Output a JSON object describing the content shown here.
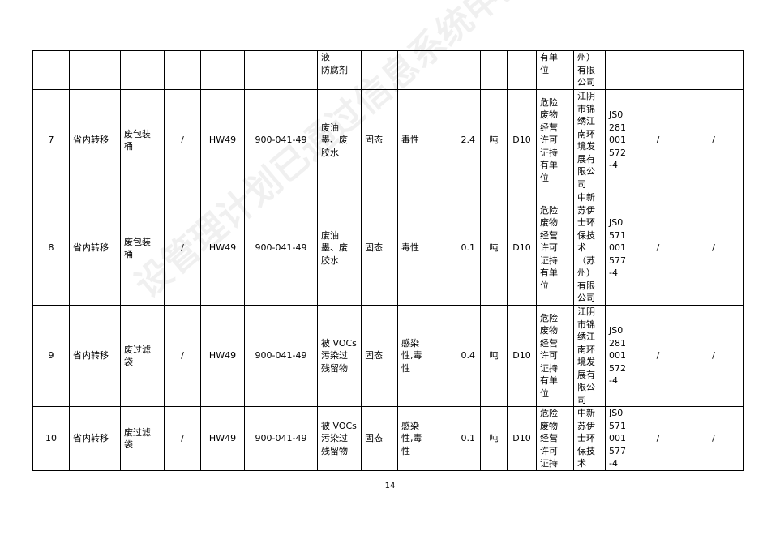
{
  "watermark": "设管理计划已通过信息系统申报备案",
  "page_number": "14",
  "rows": [
    {
      "cells": [
        "",
        "",
        "",
        "",
        "",
        "",
        "液\n防腐剂",
        "",
        "",
        "",
        "",
        "",
        "有单\n位",
        "州）\n有限\n公司",
        "",
        "",
        ""
      ]
    },
    {
      "cells": [
        "7",
        "省内转移",
        "废包装\n桶",
        "/",
        "HW49",
        "900-041-49",
        "废油\n墨、废\n胶水",
        "固态",
        "毒性",
        "2.4",
        "吨",
        "D10",
        "危险\n废物\n经营\n许可\n证持\n有单\n位",
        "江阴\n市锦\n绣江\n南环\n境发\n展有\n限公\n司",
        "JS0\n281\n001\n572\n-4",
        "/",
        "/"
      ]
    },
    {
      "cells": [
        "8",
        "省内转移",
        "废包装\n桶",
        "/",
        "HW49",
        "900-041-49",
        "废油\n墨、废\n胶水",
        "固态",
        "毒性",
        "0.1",
        "吨",
        "D10",
        "危险\n废物\n经营\n许可\n证持\n有单\n位",
        "中新\n苏伊\n士环\n保技\n术\n（苏\n州）\n有限\n公司",
        "JS0\n571\n001\n577\n-4",
        "/",
        "/"
      ]
    },
    {
      "cells": [
        "9",
        "省内转移",
        "废过滤\n袋",
        "/",
        "HW49",
        "900-041-49",
        "被 VOCs\n污染过\n残留物",
        "固态",
        "感染\n性,毒\n性",
        "0.4",
        "吨",
        "D10",
        "危险\n废物\n经营\n许可\n证持\n有单\n位",
        "江阴\n市锦\n绣江\n南环\n境发\n展有\n限公\n司",
        "JS0\n281\n001\n572\n-4",
        "/",
        "/"
      ]
    },
    {
      "cells": [
        "10",
        "省内转移",
        "废过滤\n袋",
        "/",
        "HW49",
        "900-041-49",
        "被 VOCs\n污染过\n残留物",
        "固态",
        "感染\n性,毒\n性",
        "0.1",
        "吨",
        "D10",
        "危险\n废物\n经营\n许可\n证持",
        "中新\n苏伊\n士环\n保技\n术",
        "JS0\n571\n001\n577\n-4",
        "/",
        "/"
      ]
    }
  ]
}
